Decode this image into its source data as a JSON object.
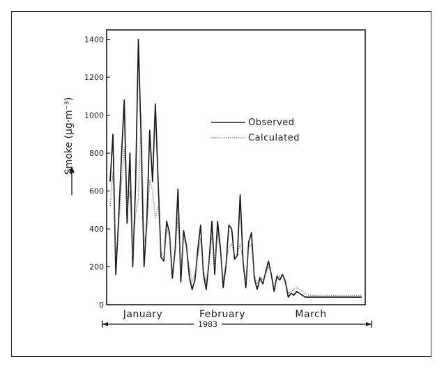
{
  "chart_data": {
    "type": "line",
    "ylabel": "Smoke (μg·m⁻³)",
    "ylim": [
      0,
      1450
    ],
    "yticks": [
      0,
      200,
      400,
      600,
      800,
      1000,
      1200,
      1400
    ],
    "xlabel": "",
    "period_label": "1983",
    "months": [
      "January",
      "February",
      "March"
    ],
    "legend_position": "top-right",
    "grid": false,
    "series": [
      {
        "name": "Observed",
        "style": "solid",
        "color": "#1a1a1a",
        "x": [
          1,
          2,
          3,
          4,
          5,
          6,
          7,
          8,
          9,
          10,
          11,
          12,
          13,
          14,
          15,
          16,
          17,
          18,
          19,
          20,
          21,
          22,
          23,
          24,
          25,
          26,
          27,
          28,
          29,
          30,
          31,
          32,
          33,
          34,
          35,
          36,
          37,
          38,
          39,
          40,
          41,
          42,
          43,
          44,
          45,
          46,
          47,
          48,
          49,
          50,
          51,
          52,
          53,
          54,
          55,
          56,
          57,
          58,
          59,
          60,
          61,
          62,
          63,
          64,
          65,
          66,
          67,
          68,
          69,
          70,
          71,
          72,
          73,
          74,
          75,
          76,
          77,
          78,
          79,
          80,
          81,
          82,
          83,
          84,
          85,
          86,
          87,
          88,
          89,
          90
        ],
        "values": [
          650,
          900,
          160,
          450,
          780,
          1080,
          430,
          800,
          200,
          630,
          1400,
          850,
          200,
          450,
          920,
          650,
          1060,
          640,
          250,
          230,
          440,
          380,
          140,
          290,
          610,
          120,
          390,
          310,
          150,
          80,
          130,
          290,
          420,
          160,
          80,
          230,
          440,
          160,
          440,
          300,
          90,
          210,
          420,
          400,
          240,
          260,
          580,
          230,
          90,
          330,
          380,
          140,
          80,
          140,
          110,
          170,
          230,
          160,
          70,
          150,
          130,
          160,
          120,
          40,
          60,
          50,
          70,
          60,
          50,
          40,
          40,
          40,
          40,
          40,
          40,
          40,
          40,
          40,
          40,
          40,
          40,
          40,
          40,
          40,
          40,
          40,
          40,
          40,
          40,
          40
        ]
      },
      {
        "name": "Calculated",
        "style": "dotted",
        "color": "#6a6a6a",
        "x": [
          1,
          2,
          3,
          4,
          5,
          6,
          7,
          8,
          9,
          10,
          11,
          12,
          13,
          14,
          15,
          16,
          17,
          18,
          19,
          20,
          21,
          22,
          23,
          24,
          25,
          26,
          27,
          28,
          29,
          30,
          31,
          32,
          33,
          34,
          35,
          36,
          37,
          38,
          39,
          40,
          41,
          42,
          43,
          44,
          45,
          46,
          47,
          48,
          49,
          50,
          51,
          52,
          53,
          54,
          55,
          56,
          57,
          58,
          59,
          60,
          61,
          62,
          63,
          64,
          65,
          66,
          67,
          68,
          69,
          70,
          71,
          72,
          73,
          74,
          75,
          76,
          77,
          78,
          79,
          80,
          81,
          82,
          83,
          84,
          85,
          86,
          87,
          88,
          89,
          90
        ],
        "values": [
          520,
          700,
          260,
          400,
          640,
          830,
          500,
          600,
          260,
          480,
          560,
          1000,
          330,
          400,
          660,
          600,
          460,
          520,
          280,
          250,
          400,
          360,
          180,
          280,
          460,
          180,
          360,
          300,
          200,
          120,
          160,
          250,
          350,
          180,
          120,
          220,
          360,
          200,
          380,
          280,
          130,
          220,
          300,
          320,
          260,
          270,
          320,
          230,
          120,
          300,
          320,
          160,
          110,
          150,
          130,
          160,
          200,
          170,
          90,
          130,
          150,
          160,
          130,
          60,
          70,
          80,
          90,
          80,
          70,
          60,
          50,
          50,
          50,
          50,
          50,
          50,
          50,
          50,
          50,
          50,
          50,
          50,
          50,
          50,
          50,
          50,
          50,
          50,
          50,
          50
        ]
      }
    ]
  }
}
